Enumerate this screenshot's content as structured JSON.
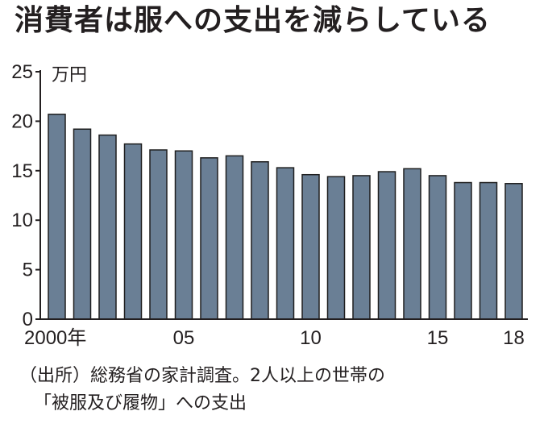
{
  "title": "消費者は服への支出を減らしている",
  "source": {
    "line1": "（出所）総務省の家計調査。2人以上の世帯の",
    "line2": "「被服及び履物」への支出"
  },
  "chart_data": {
    "type": "bar",
    "title": "消費者は服への支出を減らしている",
    "unit": "万円",
    "x": [
      2000,
      2001,
      2002,
      2003,
      2004,
      2005,
      2006,
      2007,
      2008,
      2009,
      2010,
      2011,
      2012,
      2013,
      2014,
      2015,
      2016,
      2017,
      2018
    ],
    "values": [
      20.7,
      19.2,
      18.6,
      17.7,
      17.1,
      17.0,
      16.3,
      16.5,
      15.9,
      15.3,
      14.6,
      14.4,
      14.5,
      14.9,
      15.2,
      14.5,
      13.8,
      13.8,
      13.7
    ],
    "x_tick_labels": [
      {
        "year": 2000,
        "label": "2000年"
      },
      {
        "year": 2005,
        "label": "05"
      },
      {
        "year": 2010,
        "label": "10"
      },
      {
        "year": 2015,
        "label": "15"
      },
      {
        "year": 2018,
        "label": "18"
      }
    ],
    "y_ticks": [
      0,
      5,
      10,
      15,
      20,
      25
    ],
    "ylim": [
      0,
      25
    ],
    "grid": false,
    "bar_color": "#6a7f95",
    "bar_outline": "#1f1f1f",
    "axis_color": "#231f20"
  }
}
